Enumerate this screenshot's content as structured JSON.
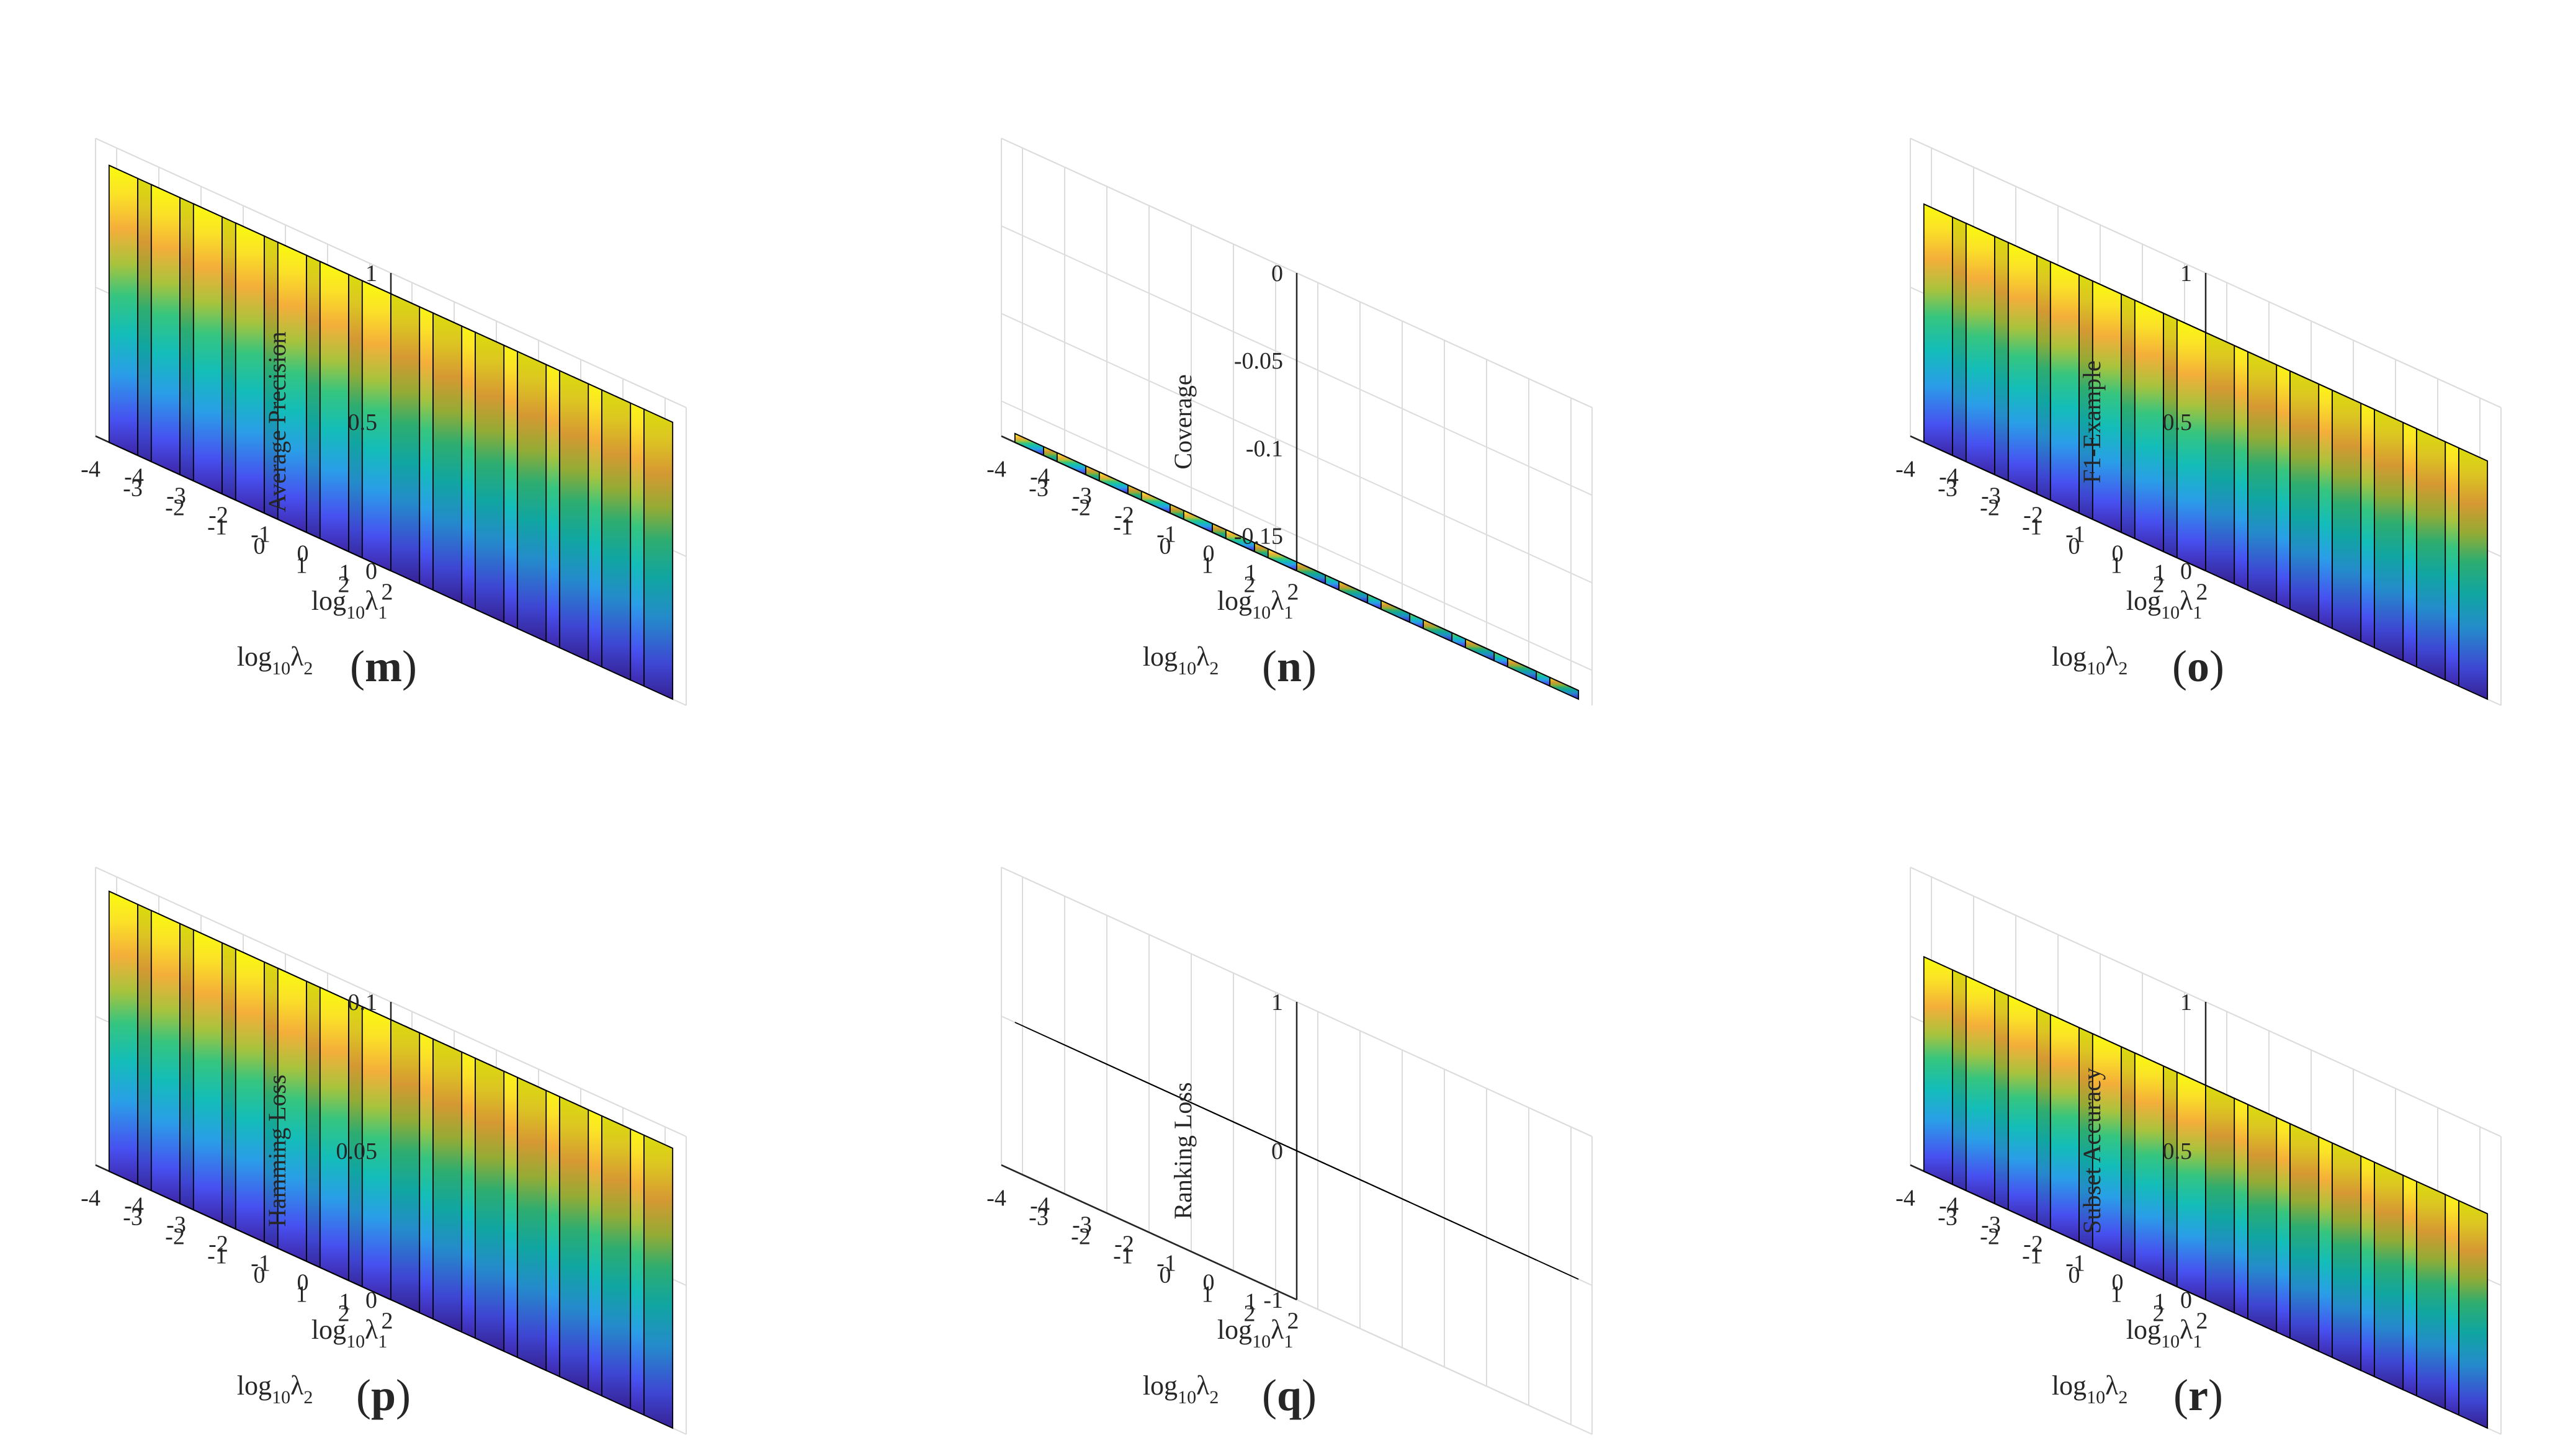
{
  "figure": {
    "x_axis_label": "log10λ1",
    "y_axis_label": "log10λ2",
    "colors": {
      "bar_gradient": [
        "#3e26a8",
        "#4750f0",
        "#2a9ee8",
        "#13bdb8",
        "#35c57f",
        "#a9c33c",
        "#f4ae3a",
        "#fbe227",
        "#f9fb0e"
      ],
      "bar_top": "#f9f80f",
      "flat_bar": "#1fc1b7",
      "grid": "#dcdcdc",
      "edge": "#000000"
    }
  },
  "chart_data": [
    {
      "panel": "m",
      "type": "bar3",
      "zlabel": "Average Precision",
      "x_ticks": [
        "-4",
        "-3",
        "-2",
        "-1",
        "0",
        "1",
        "2"
      ],
      "y_ticks": [
        "-4",
        "-3",
        "-2",
        "-1",
        "0",
        "1",
        "2"
      ],
      "z_ticks": [
        "0",
        "0.5",
        "1"
      ],
      "zlim": [
        0,
        1
      ],
      "values": [
        [
          0.93,
          0.93,
          0.93,
          0.93,
          0.93,
          0.93,
          0.93
        ],
        [
          0.93,
          0.93,
          0.93,
          0.93,
          0.93,
          0.93,
          0.93
        ],
        [
          0.93,
          0.93,
          0.93,
          0.93,
          0.93,
          0.93,
          0.93
        ],
        [
          0.93,
          0.93,
          0.93,
          0.93,
          0.93,
          0.93,
          0.93
        ],
        [
          0.93,
          0.93,
          0.93,
          0.93,
          0.93,
          0.93,
          0.93
        ],
        [
          0.93,
          0.93,
          0.93,
          0.93,
          0.93,
          0.93,
          0.93
        ],
        [
          0.93,
          0.93,
          0.93,
          0.93,
          0.93,
          0.93,
          0.93
        ]
      ]
    },
    {
      "panel": "n",
      "type": "bar3",
      "zlabel": "Coverage",
      "x_ticks": [
        "-4",
        "-3",
        "-2",
        "-1",
        "0",
        "1",
        "2"
      ],
      "y_ticks": [
        "-4",
        "-3",
        "-2",
        "-1",
        "0",
        "1",
        "2"
      ],
      "z_ticks": [
        "-0.15",
        "-0.1",
        "-0.05",
        "0"
      ],
      "zlim": [
        -0.17,
        0
      ],
      "values": [
        [
          -0.165,
          -0.165,
          -0.165,
          -0.165,
          -0.165,
          -0.165,
          -0.165
        ],
        [
          -0.165,
          -0.165,
          -0.165,
          -0.165,
          -0.165,
          -0.165,
          -0.165
        ],
        [
          -0.165,
          -0.165,
          -0.165,
          -0.165,
          -0.165,
          -0.165,
          -0.165
        ],
        [
          -0.165,
          -0.165,
          -0.165,
          -0.165,
          -0.165,
          -0.165,
          -0.165
        ],
        [
          -0.165,
          -0.165,
          -0.165,
          -0.165,
          -0.165,
          -0.165,
          -0.165
        ],
        [
          -0.165,
          -0.165,
          -0.165,
          -0.165,
          -0.165,
          -0.165,
          -0.165
        ],
        [
          -0.165,
          -0.165,
          -0.165,
          -0.165,
          -0.165,
          -0.165,
          -0.165
        ]
      ]
    },
    {
      "panel": "o",
      "type": "bar3",
      "zlabel": "F1-Example",
      "x_ticks": [
        "-4",
        "-3",
        "-2",
        "-1",
        "0",
        "1",
        "2"
      ],
      "y_ticks": [
        "-4",
        "-3",
        "-2",
        "-1",
        "0",
        "1",
        "2"
      ],
      "z_ticks": [
        "0",
        "0.5",
        "1"
      ],
      "zlim": [
        0,
        1
      ],
      "values": [
        [
          0.8,
          0.8,
          0.8,
          0.8,
          0.8,
          0.8,
          0.8
        ],
        [
          0.8,
          0.8,
          0.8,
          0.8,
          0.8,
          0.8,
          0.8
        ],
        [
          0.8,
          0.8,
          0.8,
          0.8,
          0.8,
          0.8,
          0.8
        ],
        [
          0.8,
          0.8,
          0.8,
          0.8,
          0.8,
          0.8,
          0.8
        ],
        [
          0.8,
          0.8,
          0.8,
          0.8,
          0.8,
          0.8,
          0.8
        ],
        [
          0.8,
          0.8,
          0.8,
          0.8,
          0.8,
          0.8,
          0.8
        ],
        [
          0.8,
          0.8,
          0.8,
          0.8,
          0.8,
          0.8,
          0.8
        ]
      ]
    },
    {
      "panel": "p",
      "type": "bar3",
      "zlabel": "Hamming Loss",
      "x_ticks": [
        "-4",
        "-3",
        "-2",
        "-1",
        "0",
        "1",
        "2"
      ],
      "y_ticks": [
        "-4",
        "-3",
        "-2",
        "-1",
        "0",
        "1",
        "2"
      ],
      "z_ticks": [
        "0",
        "0.05",
        "0.1"
      ],
      "zlim": [
        0,
        0.1
      ],
      "values": [
        [
          0.094,
          0.094,
          0.094,
          0.094,
          0.094,
          0.094,
          0.094
        ],
        [
          0.094,
          0.094,
          0.094,
          0.094,
          0.094,
          0.094,
          0.094
        ],
        [
          0.094,
          0.094,
          0.094,
          0.094,
          0.094,
          0.094,
          0.094
        ],
        [
          0.094,
          0.094,
          0.094,
          0.094,
          0.094,
          0.094,
          0.094
        ],
        [
          0.094,
          0.094,
          0.094,
          0.094,
          0.094,
          0.094,
          0.094
        ],
        [
          0.094,
          0.094,
          0.094,
          0.094,
          0.094,
          0.094,
          0.094
        ],
        [
          0.094,
          0.094,
          0.094,
          0.094,
          0.094,
          0.094,
          0.094
        ]
      ]
    },
    {
      "panel": "q",
      "type": "bar3",
      "zlabel": "Ranking Loss",
      "x_ticks": [
        "-4",
        "-3",
        "-2",
        "-1",
        "0",
        "1",
        "2"
      ],
      "y_ticks": [
        "-4",
        "-3",
        "-2",
        "-1",
        "0",
        "1",
        "2"
      ],
      "z_ticks": [
        "-1",
        "0",
        "1"
      ],
      "zlim": [
        -1,
        1
      ],
      "values": [
        [
          0,
          0,
          0,
          0,
          0,
          0,
          0
        ],
        [
          0,
          0,
          0,
          0,
          0,
          0,
          0
        ],
        [
          0,
          0,
          0,
          0,
          0,
          0,
          0
        ],
        [
          0,
          0,
          0,
          0,
          0,
          0,
          0
        ],
        [
          0,
          0,
          0,
          0,
          0,
          0,
          0
        ],
        [
          0,
          0,
          0,
          0,
          0,
          0,
          0
        ],
        [
          0,
          0,
          0,
          0,
          0,
          0,
          0
        ]
      ]
    },
    {
      "panel": "r",
      "type": "bar3",
      "zlabel": "Subset Accuracy",
      "x_ticks": [
        "-4",
        "-3",
        "-2",
        "-1",
        "0",
        "1",
        "2"
      ],
      "y_ticks": [
        "-4",
        "-3",
        "-2",
        "-1",
        "0",
        "1",
        "2"
      ],
      "z_ticks": [
        "0",
        "0.5",
        "1"
      ],
      "zlim": [
        0,
        1
      ],
      "values": [
        [
          0.72,
          0.72,
          0.72,
          0.72,
          0.72,
          0.72,
          0.72
        ],
        [
          0.72,
          0.72,
          0.72,
          0.72,
          0.72,
          0.72,
          0.72
        ],
        [
          0.72,
          0.72,
          0.72,
          0.72,
          0.72,
          0.72,
          0.72
        ],
        [
          0.72,
          0.72,
          0.72,
          0.72,
          0.72,
          0.72,
          0.72
        ],
        [
          0.72,
          0.72,
          0.72,
          0.72,
          0.72,
          0.72,
          0.72
        ],
        [
          0.72,
          0.72,
          0.72,
          0.72,
          0.72,
          0.72,
          0.72
        ],
        [
          0.72,
          0.72,
          0.72,
          0.72,
          0.72,
          0.72,
          0.72
        ]
      ]
    }
  ]
}
